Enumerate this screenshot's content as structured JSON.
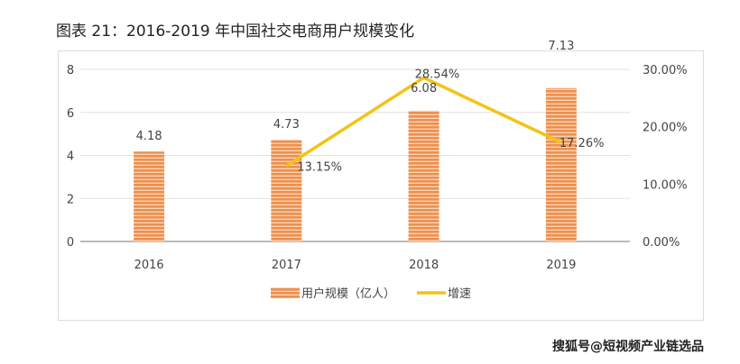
{
  "title": "图表 21：2016-2019 年中国社交电商用户规模变化",
  "watermark": "搜狐号@短视频产业链选品",
  "chart_data": {
    "type": "bar",
    "title": "图表 21：2016-2019 年中国社交电商用户规模变化",
    "categories": [
      "2016",
      "2017",
      "2018",
      "2019"
    ],
    "series": [
      {
        "name": "用户规模（亿人）",
        "type": "bar",
        "axis": "left",
        "values": [
          4.18,
          4.73,
          6.08,
          7.13
        ],
        "labels": [
          "4.18",
          "4.73",
          "6.08",
          "7.13"
        ],
        "color": "#ED8F4E"
      },
      {
        "name": "增速",
        "type": "line",
        "axis": "right",
        "values": [
          null,
          13.15,
          28.54,
          17.26
        ],
        "labels": [
          "",
          "13.15%",
          "28.54%",
          "17.26%"
        ],
        "color": "#F2C318"
      }
    ],
    "left_axis": {
      "ylim": [
        0,
        8
      ],
      "ticks": [
        "0",
        "2",
        "4",
        "6",
        "8"
      ]
    },
    "right_axis": {
      "ylim": [
        0,
        30
      ],
      "ticks": [
        "0.00%",
        "10.00%",
        "20.00%",
        "30.00%"
      ]
    },
    "grid": true,
    "legend": "bottom"
  }
}
